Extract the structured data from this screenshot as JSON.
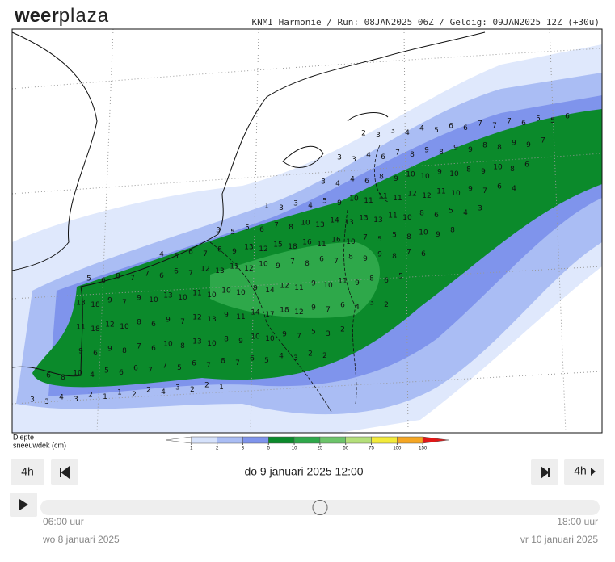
{
  "header": {
    "logo_bold": "weer",
    "logo_light": "plaza",
    "model_info": "KNMI Harmonie / Run: 08JAN2025 06Z / Geldig: 09JAN2025 12Z (+30u)"
  },
  "map": {
    "rows": [
      [
        2,
        3,
        3,
        4,
        4,
        5,
        6,
        6,
        7,
        7,
        7,
        6,
        5,
        5,
        6
      ],
      [
        3,
        3,
        4,
        6,
        7,
        8,
        9,
        8,
        9,
        9,
        8,
        8,
        9,
        9,
        7
      ],
      [
        3,
        4,
        4,
        6,
        8,
        9,
        10,
        10,
        9,
        10,
        8,
        9,
        10,
        8,
        6
      ],
      [
        1,
        3,
        3,
        4,
        5,
        9,
        10,
        11,
        11,
        11,
        12,
        12,
        11,
        10,
        9,
        7,
        6,
        4
      ],
      [
        3,
        5,
        5,
        6,
        7,
        8,
        10,
        13,
        14,
        13,
        13,
        13,
        11,
        10,
        8,
        6,
        5,
        4,
        3
      ],
      [
        4,
        5,
        6,
        7,
        8,
        9,
        13,
        12,
        15,
        18,
        16,
        11,
        16,
        10,
        7,
        5,
        5,
        8,
        10,
        9,
        8
      ],
      [
        5,
        6,
        8,
        7,
        7,
        6,
        6,
        7,
        12,
        13,
        11,
        12,
        10,
        9,
        7,
        8,
        6,
        7,
        8,
        9,
        9,
        8,
        7,
        6
      ],
      [
        13,
        18,
        9,
        7,
        9,
        10,
        13,
        10,
        11,
        10,
        10,
        10,
        9,
        14,
        12,
        11,
        9,
        10,
        11,
        9,
        8,
        6,
        5
      ],
      [
        11,
        18,
        12,
        10,
        8,
        6,
        9,
        7,
        12,
        13,
        9,
        11,
        14,
        17,
        18,
        12,
        9,
        7,
        6,
        4,
        3,
        2
      ],
      [
        9,
        6,
        9,
        8,
        7,
        6,
        10,
        8,
        13,
        10,
        8,
        9,
        10,
        10,
        9,
        7,
        5,
        3,
        2
      ],
      [
        6,
        8,
        10,
        4,
        5,
        6,
        6,
        7,
        7,
        5,
        6,
        7,
        8,
        7,
        6,
        5,
        4,
        3,
        2,
        2
      ],
      [
        3,
        3,
        4,
        3,
        2,
        1,
        1,
        2,
        2,
        4,
        3,
        2,
        2,
        1
      ]
    ]
  },
  "legend": {
    "title_line1": "Diepte",
    "title_line2": "sneeuwdek (cm)",
    "ticks": [
      1,
      2,
      3,
      5,
      10,
      25,
      50,
      75,
      100,
      150
    ],
    "colors": [
      "#ffffff",
      "#d6e2fb",
      "#aabdf4",
      "#7f94ec",
      "#0b8a2b",
      "#2ea84a",
      "#6cc46a",
      "#b4df7a",
      "#f2ea3a",
      "#f5a623",
      "#e01818"
    ]
  },
  "controls": {
    "step_back": "4h",
    "step_forward": "4h",
    "current_time": "do 9 januari 2025 12:00",
    "start_time": "06:00 uur",
    "end_time": "18:00 uur",
    "start_date": "wo 8 januari 2025",
    "end_date": "vr 10 januari 2025"
  }
}
